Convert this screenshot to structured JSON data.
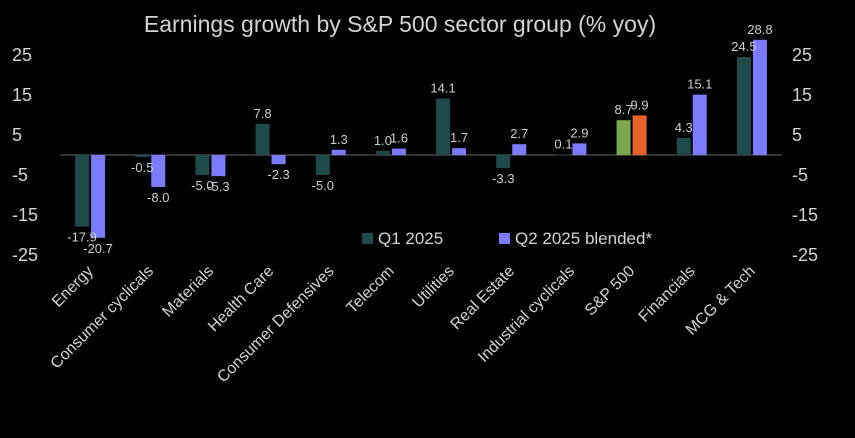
{
  "chart_data": {
    "type": "bar",
    "title": "Earnings growth by S&P 500 sector group (% yoy)",
    "xlabel": "",
    "ylabel": "",
    "ylim": [
      -25,
      30
    ],
    "yticks": [
      25,
      15,
      5,
      -5,
      -15,
      -25
    ],
    "categories": [
      "Energy",
      "Consumer cyclicals",
      "Materials",
      "Health Care",
      "Consumer Defensives",
      "Telecom",
      "Utilities",
      "Real Estate",
      "Industrial cyclicals",
      "S&P 500",
      "Financials",
      "MCG & Tech"
    ],
    "series": [
      {
        "name": "Q1 2025",
        "color": "#1f4a4a",
        "values": [
          -17.9,
          -0.5,
          -5.0,
          7.8,
          -5.0,
          1.0,
          14.1,
          -3.3,
          0.1,
          8.7,
          4.3,
          24.5
        ],
        "labels": [
          "-17.9",
          "-0.5",
          "-5.0",
          "7.8",
          "-5.0",
          "1.0",
          "14.1",
          "-3.3",
          "0.1",
          "8.7",
          "4.3",
          "24.5"
        ]
      },
      {
        "name": "Q2 2025 blended*",
        "color": "#7b7bff",
        "values": [
          -20.7,
          -8.0,
          -5.3,
          -2.3,
          1.3,
          1.6,
          1.7,
          2.7,
          2.9,
          9.9,
          15.1,
          28.8
        ],
        "labels": [
          "-20.7",
          "-8.0",
          "-5.3",
          "-2.3",
          "1.3",
          "1.6",
          "1.7",
          "2.7",
          "2.9",
          "9.9",
          "15.1",
          "28.8"
        ]
      }
    ],
    "highlight": {
      "category": "S&P 500",
      "colors": [
        "#7ba84f",
        "#e8622c"
      ]
    },
    "legend_position": "center-right",
    "grid": false
  }
}
